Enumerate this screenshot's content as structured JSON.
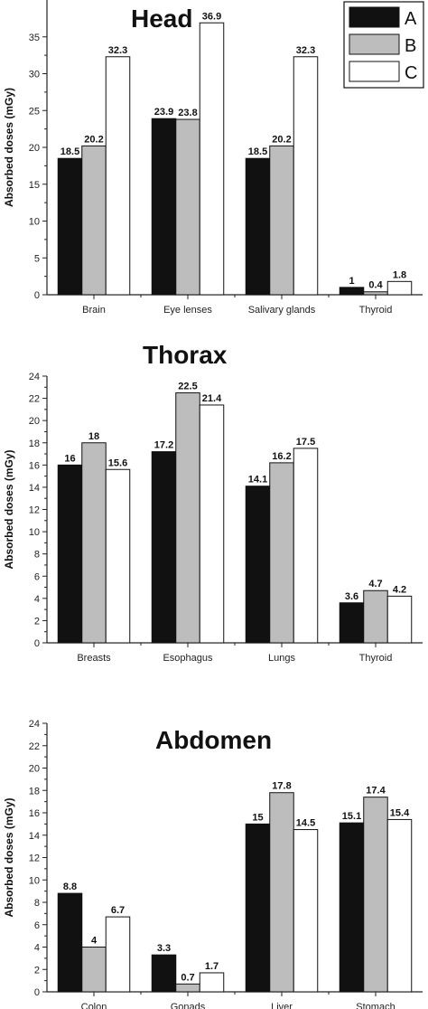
{
  "colors": {
    "A": "#111111",
    "B": "#bdbdbd",
    "C": "#ffffff"
  },
  "legend": [
    "A",
    "B",
    "C"
  ],
  "chart_data": [
    {
      "type": "bar",
      "title": "Head",
      "ylabel": "Absorbed doses (mGy)",
      "xlabel": "",
      "categories": [
        "Brain",
        "Eye lenses",
        "Salivary glands",
        "Thyroid"
      ],
      "ylim": [
        0,
        40
      ],
      "yticks": [
        0,
        5,
        10,
        15,
        20,
        25,
        30,
        35
      ],
      "series": [
        {
          "name": "A",
          "values": [
            18.5,
            23.9,
            18.5,
            1
          ]
        },
        {
          "name": "B",
          "values": [
            20.2,
            23.8,
            20.2,
            0.4
          ]
        },
        {
          "name": "C",
          "values": [
            32.3,
            36.9,
            32.3,
            1.8
          ]
        }
      ],
      "legend_position": "top-right",
      "grid": false
    },
    {
      "type": "bar",
      "title": "Thorax",
      "ylabel": "Absorbed doses (mGy)",
      "xlabel": "",
      "categories": [
        "Breasts",
        "Esophagus",
        "Lungs",
        "Thyroid"
      ],
      "ylim": [
        0,
        24
      ],
      "yticks": [
        0,
        2,
        4,
        6,
        8,
        10,
        12,
        14,
        16,
        18,
        20,
        22,
        24
      ],
      "series": [
        {
          "name": "A",
          "values": [
            16,
            17.2,
            14.1,
            3.6
          ]
        },
        {
          "name": "B",
          "values": [
            18,
            22.5,
            16.2,
            4.7
          ]
        },
        {
          "name": "C",
          "values": [
            15.6,
            21.4,
            17.5,
            4.2
          ]
        }
      ],
      "grid": false
    },
    {
      "type": "bar",
      "title": "Abdomen",
      "ylabel": "Absorbed doses (mGy)",
      "xlabel": "",
      "categories": [
        "Colon",
        "Gonads",
        "Liver",
        "Stomach"
      ],
      "ylim": [
        0,
        24
      ],
      "yticks": [
        0,
        2,
        4,
        6,
        8,
        10,
        12,
        14,
        16,
        18,
        20,
        22,
        24
      ],
      "series": [
        {
          "name": "A",
          "values": [
            8.8,
            3.3,
            15,
            15.1
          ]
        },
        {
          "name": "B",
          "values": [
            4,
            0.7,
            17.8,
            17.4
          ]
        },
        {
          "name": "C",
          "values": [
            6.7,
            1.7,
            14.5,
            15.4
          ]
        }
      ],
      "grid": false
    }
  ]
}
